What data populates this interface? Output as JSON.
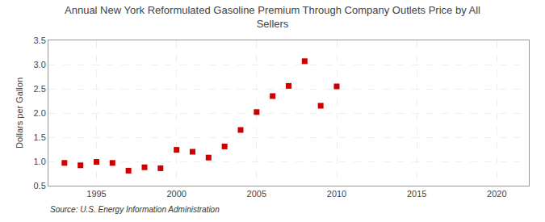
{
  "chart_data": {
    "type": "scatter",
    "title": "Annual New York Reformulated Gasoline Premium Through Company Outlets Price by All\nSellers",
    "ylabel": "Dollars per Gallon",
    "source": "Source: U.S. Energy Information Administration",
    "x": [
      1993,
      1994,
      1995,
      1996,
      1997,
      1998,
      1999,
      2000,
      2001,
      2002,
      2003,
      2004,
      2005,
      2006,
      2007,
      2008,
      2009,
      2010
    ],
    "values": [
      0.97,
      0.92,
      0.99,
      0.97,
      0.81,
      0.88,
      0.86,
      1.24,
      1.2,
      1.08,
      1.31,
      1.65,
      2.02,
      2.35,
      2.56,
      3.07,
      2.15,
      2.55
    ],
    "color": "#cc0000",
    "marker": "square",
    "xlim": [
      1992,
      2022
    ],
    "xticks": [
      1995,
      2000,
      2005,
      2010,
      2015,
      2020
    ],
    "ylim": [
      0.5,
      3.5
    ],
    "yticks": [
      0.5,
      {
        "value": 1,
        "label": "1.0"
      },
      1.5,
      {
        "value": 2,
        "label": "2.0"
      },
      2.5,
      {
        "value": 3,
        "label": "3.0"
      },
      3.5
    ],
    "grid": true
  }
}
